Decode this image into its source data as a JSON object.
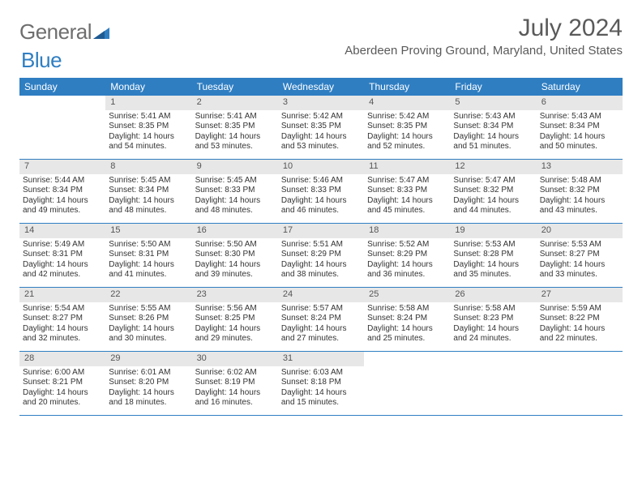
{
  "logo": {
    "part1": "General",
    "part2": "Blue"
  },
  "title": "July 2024",
  "location": "Aberdeen Proving Ground, Maryland, United States",
  "colors": {
    "header_bg": "#2f7ec2",
    "daynum_bg": "#e7e7e7",
    "text": "#333333",
    "logo_gray": "#6e6e6e",
    "logo_blue": "#2f7ec2"
  },
  "weekdays": [
    "Sunday",
    "Monday",
    "Tuesday",
    "Wednesday",
    "Thursday",
    "Friday",
    "Saturday"
  ],
  "weeks": [
    [
      null,
      {
        "n": "1",
        "sr": "Sunrise: 5:41 AM",
        "ss": "Sunset: 8:35 PM",
        "d1": "Daylight: 14 hours",
        "d2": "and 54 minutes."
      },
      {
        "n": "2",
        "sr": "Sunrise: 5:41 AM",
        "ss": "Sunset: 8:35 PM",
        "d1": "Daylight: 14 hours",
        "d2": "and 53 minutes."
      },
      {
        "n": "3",
        "sr": "Sunrise: 5:42 AM",
        "ss": "Sunset: 8:35 PM",
        "d1": "Daylight: 14 hours",
        "d2": "and 53 minutes."
      },
      {
        "n": "4",
        "sr": "Sunrise: 5:42 AM",
        "ss": "Sunset: 8:35 PM",
        "d1": "Daylight: 14 hours",
        "d2": "and 52 minutes."
      },
      {
        "n": "5",
        "sr": "Sunrise: 5:43 AM",
        "ss": "Sunset: 8:34 PM",
        "d1": "Daylight: 14 hours",
        "d2": "and 51 minutes."
      },
      {
        "n": "6",
        "sr": "Sunrise: 5:43 AM",
        "ss": "Sunset: 8:34 PM",
        "d1": "Daylight: 14 hours",
        "d2": "and 50 minutes."
      }
    ],
    [
      {
        "n": "7",
        "sr": "Sunrise: 5:44 AM",
        "ss": "Sunset: 8:34 PM",
        "d1": "Daylight: 14 hours",
        "d2": "and 49 minutes."
      },
      {
        "n": "8",
        "sr": "Sunrise: 5:45 AM",
        "ss": "Sunset: 8:34 PM",
        "d1": "Daylight: 14 hours",
        "d2": "and 48 minutes."
      },
      {
        "n": "9",
        "sr": "Sunrise: 5:45 AM",
        "ss": "Sunset: 8:33 PM",
        "d1": "Daylight: 14 hours",
        "d2": "and 48 minutes."
      },
      {
        "n": "10",
        "sr": "Sunrise: 5:46 AM",
        "ss": "Sunset: 8:33 PM",
        "d1": "Daylight: 14 hours",
        "d2": "and 46 minutes."
      },
      {
        "n": "11",
        "sr": "Sunrise: 5:47 AM",
        "ss": "Sunset: 8:33 PM",
        "d1": "Daylight: 14 hours",
        "d2": "and 45 minutes."
      },
      {
        "n": "12",
        "sr": "Sunrise: 5:47 AM",
        "ss": "Sunset: 8:32 PM",
        "d1": "Daylight: 14 hours",
        "d2": "and 44 minutes."
      },
      {
        "n": "13",
        "sr": "Sunrise: 5:48 AM",
        "ss": "Sunset: 8:32 PM",
        "d1": "Daylight: 14 hours",
        "d2": "and 43 minutes."
      }
    ],
    [
      {
        "n": "14",
        "sr": "Sunrise: 5:49 AM",
        "ss": "Sunset: 8:31 PM",
        "d1": "Daylight: 14 hours",
        "d2": "and 42 minutes."
      },
      {
        "n": "15",
        "sr": "Sunrise: 5:50 AM",
        "ss": "Sunset: 8:31 PM",
        "d1": "Daylight: 14 hours",
        "d2": "and 41 minutes."
      },
      {
        "n": "16",
        "sr": "Sunrise: 5:50 AM",
        "ss": "Sunset: 8:30 PM",
        "d1": "Daylight: 14 hours",
        "d2": "and 39 minutes."
      },
      {
        "n": "17",
        "sr": "Sunrise: 5:51 AM",
        "ss": "Sunset: 8:29 PM",
        "d1": "Daylight: 14 hours",
        "d2": "and 38 minutes."
      },
      {
        "n": "18",
        "sr": "Sunrise: 5:52 AM",
        "ss": "Sunset: 8:29 PM",
        "d1": "Daylight: 14 hours",
        "d2": "and 36 minutes."
      },
      {
        "n": "19",
        "sr": "Sunrise: 5:53 AM",
        "ss": "Sunset: 8:28 PM",
        "d1": "Daylight: 14 hours",
        "d2": "and 35 minutes."
      },
      {
        "n": "20",
        "sr": "Sunrise: 5:53 AM",
        "ss": "Sunset: 8:27 PM",
        "d1": "Daylight: 14 hours",
        "d2": "and 33 minutes."
      }
    ],
    [
      {
        "n": "21",
        "sr": "Sunrise: 5:54 AM",
        "ss": "Sunset: 8:27 PM",
        "d1": "Daylight: 14 hours",
        "d2": "and 32 minutes."
      },
      {
        "n": "22",
        "sr": "Sunrise: 5:55 AM",
        "ss": "Sunset: 8:26 PM",
        "d1": "Daylight: 14 hours",
        "d2": "and 30 minutes."
      },
      {
        "n": "23",
        "sr": "Sunrise: 5:56 AM",
        "ss": "Sunset: 8:25 PM",
        "d1": "Daylight: 14 hours",
        "d2": "and 29 minutes."
      },
      {
        "n": "24",
        "sr": "Sunrise: 5:57 AM",
        "ss": "Sunset: 8:24 PM",
        "d1": "Daylight: 14 hours",
        "d2": "and 27 minutes."
      },
      {
        "n": "25",
        "sr": "Sunrise: 5:58 AM",
        "ss": "Sunset: 8:24 PM",
        "d1": "Daylight: 14 hours",
        "d2": "and 25 minutes."
      },
      {
        "n": "26",
        "sr": "Sunrise: 5:58 AM",
        "ss": "Sunset: 8:23 PM",
        "d1": "Daylight: 14 hours",
        "d2": "and 24 minutes."
      },
      {
        "n": "27",
        "sr": "Sunrise: 5:59 AM",
        "ss": "Sunset: 8:22 PM",
        "d1": "Daylight: 14 hours",
        "d2": "and 22 minutes."
      }
    ],
    [
      {
        "n": "28",
        "sr": "Sunrise: 6:00 AM",
        "ss": "Sunset: 8:21 PM",
        "d1": "Daylight: 14 hours",
        "d2": "and 20 minutes."
      },
      {
        "n": "29",
        "sr": "Sunrise: 6:01 AM",
        "ss": "Sunset: 8:20 PM",
        "d1": "Daylight: 14 hours",
        "d2": "and 18 minutes."
      },
      {
        "n": "30",
        "sr": "Sunrise: 6:02 AM",
        "ss": "Sunset: 8:19 PM",
        "d1": "Daylight: 14 hours",
        "d2": "and 16 minutes."
      },
      {
        "n": "31",
        "sr": "Sunrise: 6:03 AM",
        "ss": "Sunset: 8:18 PM",
        "d1": "Daylight: 14 hours",
        "d2": "and 15 minutes."
      },
      null,
      null,
      null
    ]
  ]
}
